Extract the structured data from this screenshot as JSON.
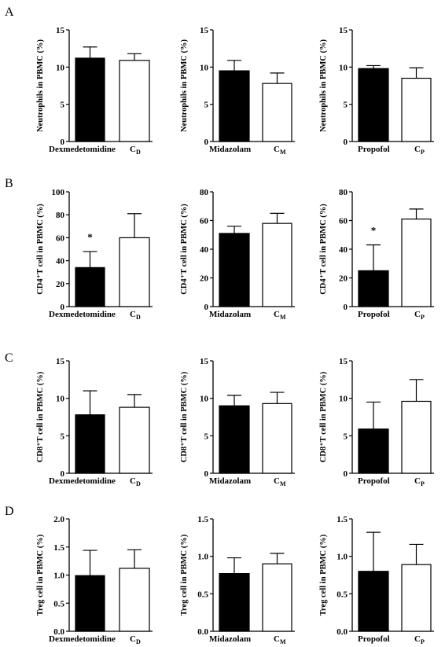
{
  "panels": [
    {
      "letter": "A",
      "charts": [
        {
          "type": "bar",
          "ylabel": "Neutrophils in PBMC (%)",
          "categories": [
            "Dexmedetomidine",
            "C_D"
          ],
          "values": [
            11.2,
            10.9
          ],
          "errors": [
            1.5,
            0.9
          ],
          "ylim": [
            0,
            15
          ],
          "yticks": [
            0,
            5,
            10,
            15
          ],
          "significance": []
        },
        {
          "type": "bar",
          "ylabel": "Neutrophils in PBMC (%)",
          "categories": [
            "Midazolam",
            "C_M"
          ],
          "values": [
            9.5,
            7.8
          ],
          "errors": [
            1.4,
            1.4
          ],
          "ylim": [
            0,
            15
          ],
          "yticks": [
            0,
            5,
            10,
            15
          ],
          "significance": []
        },
        {
          "type": "bar",
          "ylabel": "Neutrophils in PBMC (%)",
          "categories": [
            "Propofol",
            "C_P"
          ],
          "values": [
            9.8,
            8.5
          ],
          "errors": [
            0.4,
            1.4
          ],
          "ylim": [
            0,
            15
          ],
          "yticks": [
            0,
            5,
            10,
            15
          ],
          "significance": []
        }
      ]
    },
    {
      "letter": "B",
      "charts": [
        {
          "type": "bar",
          "ylabel": "CD4⁺T cell in PBMC (%)",
          "categories": [
            "Dexmedetomidine",
            "C_D"
          ],
          "values": [
            34,
            60
          ],
          "errors": [
            14,
            21
          ],
          "ylim": [
            0,
            100
          ],
          "yticks": [
            0,
            20,
            40,
            60,
            80,
            100
          ],
          "significance": [
            "*",
            ""
          ]
        },
        {
          "type": "bar",
          "ylabel": "CD4⁺T cell in PBMC (%)",
          "categories": [
            "Midazolam",
            "C_M"
          ],
          "values": [
            51,
            58
          ],
          "errors": [
            5,
            7
          ],
          "ylim": [
            0,
            80
          ],
          "yticks": [
            0,
            20,
            40,
            60,
            80
          ],
          "significance": []
        },
        {
          "type": "bar",
          "ylabel": "CD4⁺T cell in PBMC (%)",
          "categories": [
            "Propofol",
            "C_P"
          ],
          "values": [
            25,
            61
          ],
          "errors": [
            18,
            7
          ],
          "ylim": [
            0,
            80
          ],
          "yticks": [
            0,
            20,
            40,
            60,
            80
          ],
          "significance": [
            "*",
            ""
          ]
        }
      ]
    },
    {
      "letter": "C",
      "charts": [
        {
          "type": "bar",
          "ylabel": "CD8⁺T cell in PBMC (%)",
          "categories": [
            "Dexmedetomidine",
            "C_D"
          ],
          "values": [
            7.8,
            8.8
          ],
          "errors": [
            3.2,
            1.7
          ],
          "ylim": [
            0,
            15
          ],
          "yticks": [
            0,
            5,
            10,
            15
          ],
          "significance": []
        },
        {
          "type": "bar",
          "ylabel": "CD8⁺T cell in PBMC (%)",
          "categories": [
            "Midazolam",
            "C_M"
          ],
          "values": [
            9.0,
            9.3
          ],
          "errors": [
            1.4,
            1.5
          ],
          "ylim": [
            0,
            15
          ],
          "yticks": [
            0,
            5,
            10,
            15
          ],
          "significance": []
        },
        {
          "type": "bar",
          "ylabel": "CD8⁺T cell in PBMC (%)",
          "categories": [
            "Propofol",
            "C_P"
          ],
          "values": [
            5.9,
            9.6
          ],
          "errors": [
            3.6,
            2.9
          ],
          "ylim": [
            0,
            15
          ],
          "yticks": [
            0,
            5,
            10,
            15
          ],
          "significance": []
        }
      ]
    },
    {
      "letter": "D",
      "charts": [
        {
          "type": "bar",
          "ylabel": "Treg cell in PBMC (%)",
          "categories": [
            "Dexmedetomidine",
            "C_D"
          ],
          "values": [
            0.99,
            1.12
          ],
          "errors": [
            0.45,
            0.33
          ],
          "ylim": [
            0,
            2
          ],
          "yticks": [
            "0.0",
            "0.5",
            "1.0",
            "1.5",
            "2.0"
          ],
          "significance": []
        },
        {
          "type": "bar",
          "ylabel": "Treg cell in PBMC (%)",
          "categories": [
            "Midazolam",
            "C_M"
          ],
          "values": [
            0.77,
            0.9
          ],
          "errors": [
            0.21,
            0.14
          ],
          "ylim": [
            0,
            1.5
          ],
          "yticks": [
            "0.0",
            "0.5",
            "1.0",
            "1.5"
          ],
          "significance": []
        },
        {
          "type": "bar",
          "ylabel": "Treg cell in PBMC (%)",
          "categories": [
            "Propofol",
            "C_P"
          ],
          "values": [
            0.8,
            0.89
          ],
          "errors": [
            0.52,
            0.27
          ],
          "ylim": [
            0,
            1.5
          ],
          "yticks": [
            "0.0",
            "0.5",
            "1.0",
            "1.5"
          ],
          "significance": []
        }
      ]
    }
  ],
  "colors": {
    "treatment": "#000000",
    "control": "#ffffff",
    "axis": "#000000"
  }
}
